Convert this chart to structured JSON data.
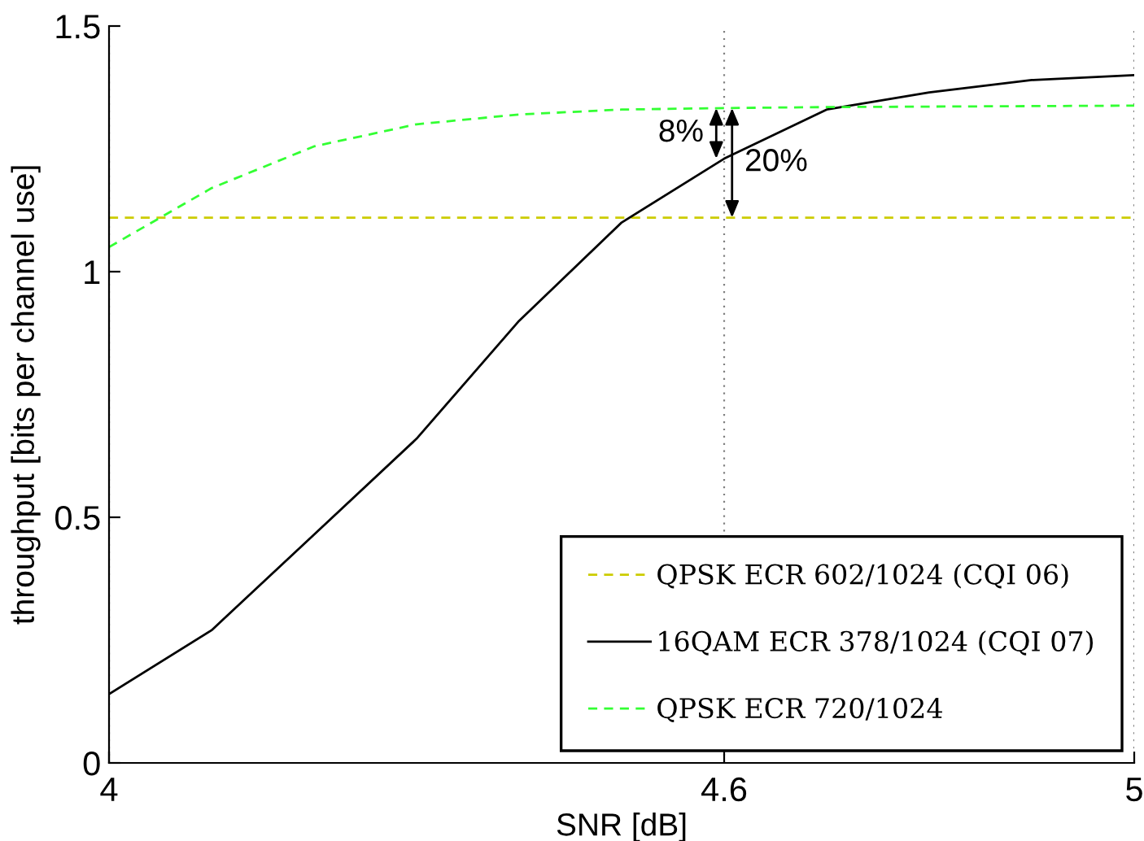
{
  "chart_data": {
    "type": "line",
    "xlabel": "SNR [dB]",
    "ylabel": "throughput [bits per channel use]",
    "x": [
      4,
      4.1,
      4.2,
      4.3,
      4.4,
      4.5,
      4.6,
      4.7,
      4.8,
      4.9,
      5
    ],
    "series": [
      {
        "name": "QPSK ECR 602/1024 (CQI 06)",
        "color": "#cccc00",
        "x": [
          4,
          5
        ],
        "values": [
          1.11,
          1.11
        ],
        "line_style": "dashed"
      },
      {
        "name": "16QAM ECR 378/1024 (CQI 07)",
        "color": "#000000",
        "values": [
          0.14,
          0.27,
          0.465,
          0.66,
          0.9,
          1.1,
          1.23,
          1.33,
          1.365,
          1.39,
          1.4
        ],
        "line_style": "solid"
      },
      {
        "name": "QPSK ECR 720/1024",
        "color": "#33ff33",
        "values": [
          1.05,
          1.17,
          1.255,
          1.3,
          1.32,
          1.33,
          1.333,
          1.335,
          1.336,
          1.337,
          1.338
        ],
        "line_style": "dashed"
      }
    ],
    "xlim": [
      4,
      5
    ],
    "xticks": [
      4,
      4.6,
      5
    ],
    "ylim": [
      0,
      1.5
    ],
    "yticks": [
      0,
      0.5,
      1,
      1.5
    ],
    "grid": "x",
    "legend": "bottom right",
    "annotations": [
      {
        "text": "8%",
        "x": 4.6,
        "y": 1.23
      },
      {
        "text": "20%",
        "x": 4.6,
        "y": 1.11
      }
    ]
  }
}
